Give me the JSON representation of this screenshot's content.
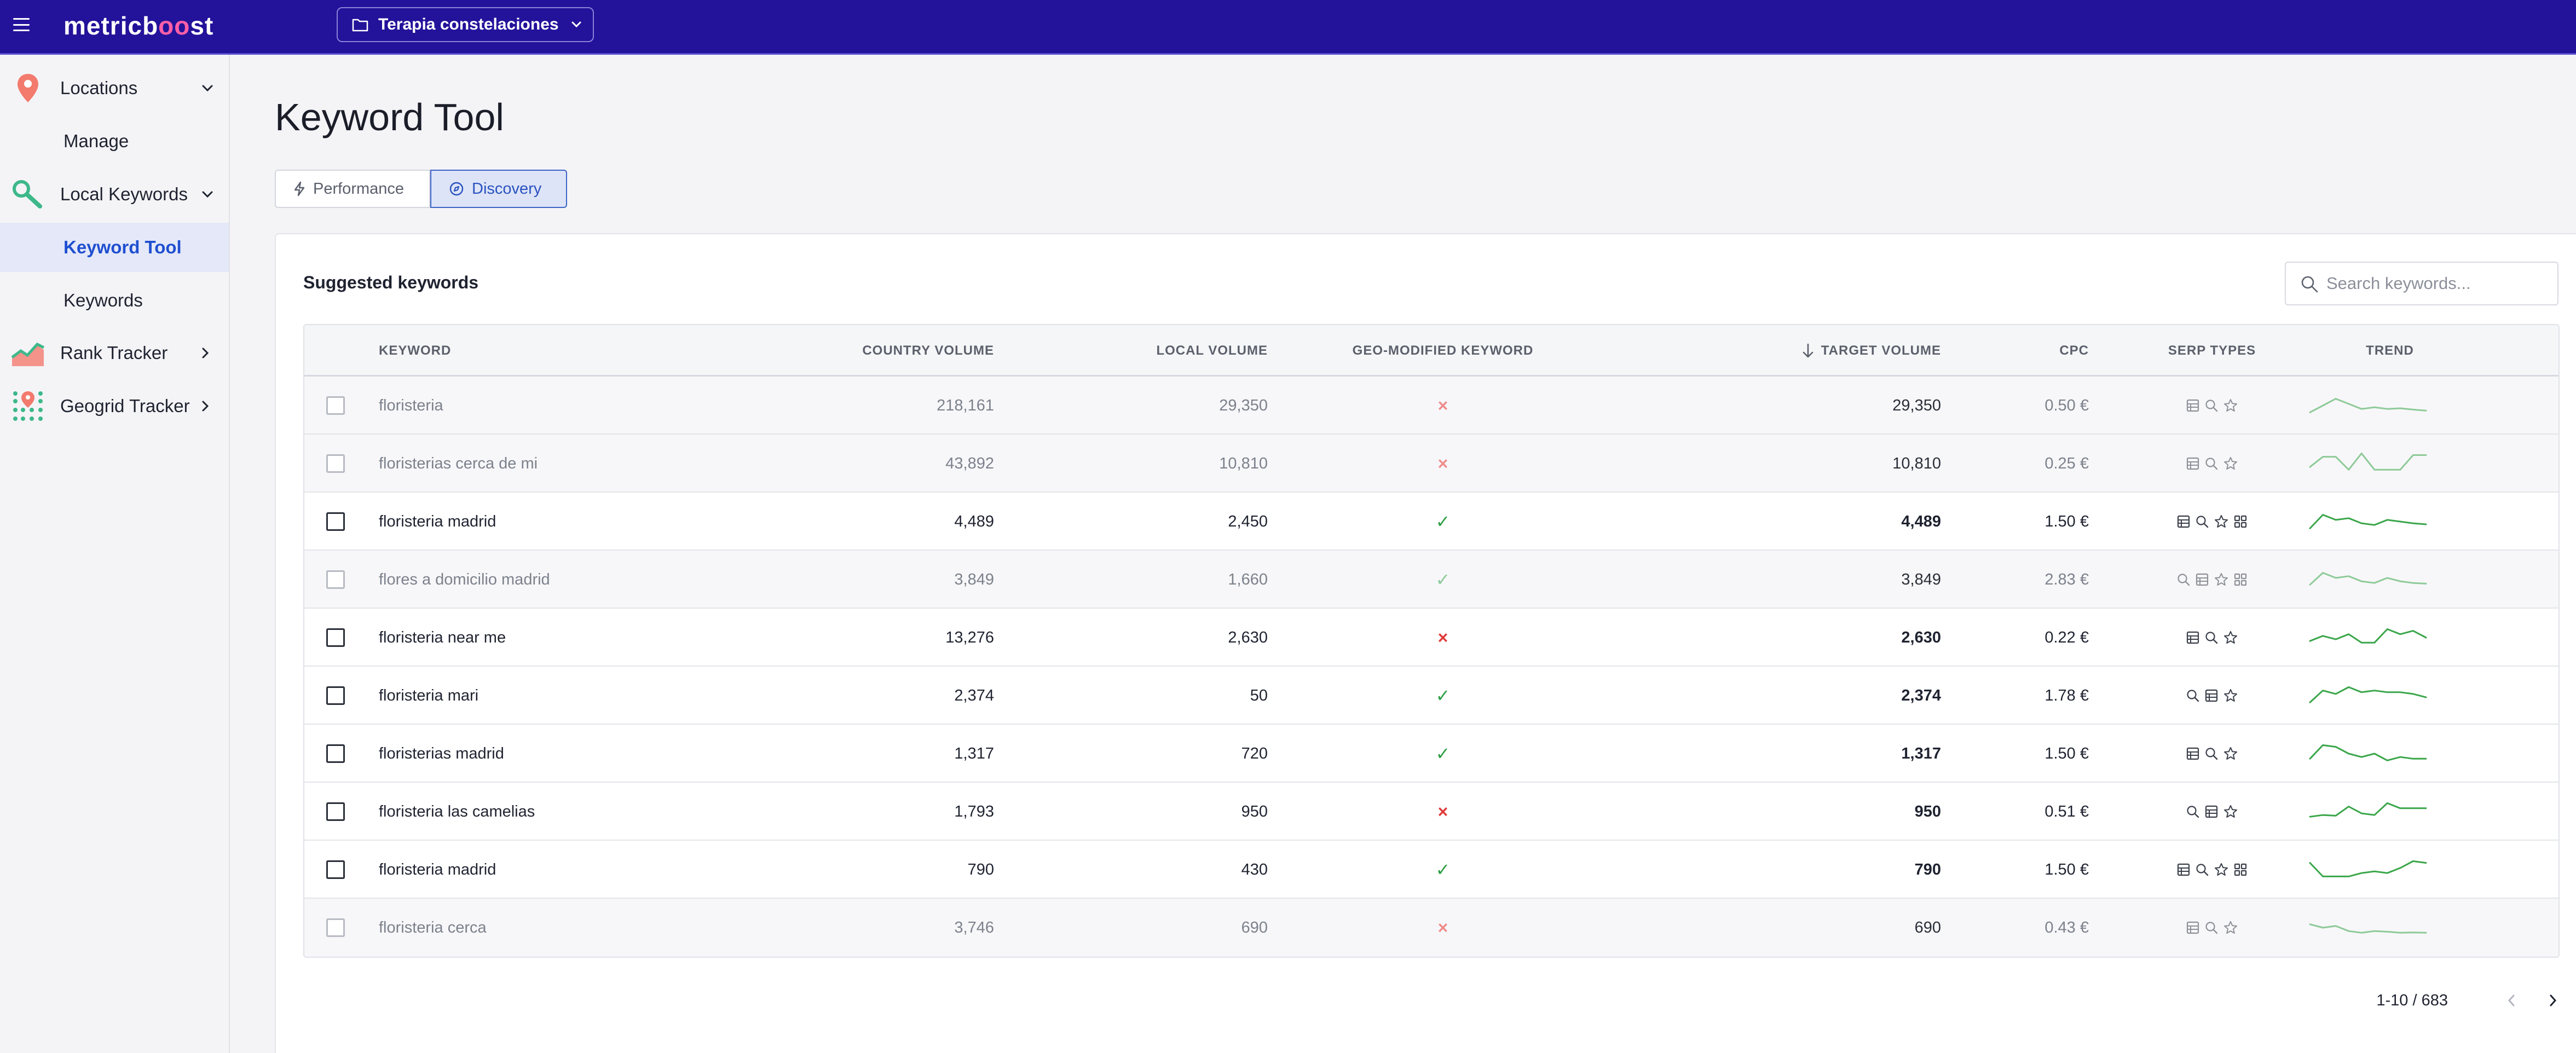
{
  "topbar": {
    "logo_prefix": "metricb",
    "logo_o1": "o",
    "logo_o2": "o",
    "logo_suffix": "st",
    "project": "Terapia constelaciones"
  },
  "sidebar": {
    "items": [
      {
        "label": "Locations",
        "icon": "map-pin-icon"
      },
      {
        "label": "Manage"
      },
      {
        "label": "Local Keywords",
        "icon": "key-search-icon"
      },
      {
        "label": "Keyword Tool",
        "active": true
      },
      {
        "label": "Keywords"
      },
      {
        "label": "Rank Tracker",
        "icon": "chart-icon"
      },
      {
        "label": "Geogrid Tracker",
        "icon": "grid-pin-icon"
      }
    ]
  },
  "page": {
    "title": "Keyword Tool",
    "tabs": [
      {
        "label": "Performance",
        "icon": "bolt-icon"
      },
      {
        "label": "Discovery",
        "icon": "compass-icon",
        "active": true
      }
    ]
  },
  "card": {
    "title": "Suggested keywords",
    "search_placeholder": "Search keywords..."
  },
  "table": {
    "headers": {
      "keyword": "KEYWORD",
      "country_volume": "COUNTRY VOLUME",
      "local_volume": "LOCAL VOLUME",
      "geo": "GEO-MODIFIED KEYWORD",
      "target_volume": "TARGET VOLUME",
      "cpc": "CPC",
      "serp": "SERP TYPES",
      "trend": "TREND"
    },
    "rows": [
      {
        "keyword": "floristeria",
        "country": "218,161",
        "local": "29,350",
        "geo": "×",
        "target": "29,350",
        "cpc": "0.50 €",
        "muted": true,
        "serp": [
          "list",
          "search",
          "star"
        ],
        "trend": [
          70,
          50,
          30,
          45,
          60,
          55,
          60,
          58,
          62,
          65
        ]
      },
      {
        "keyword": "floristerias cerca de mi",
        "country": "43,892",
        "local": "10,810",
        "geo": "×",
        "target": "10,810",
        "cpc": "0.25 €",
        "muted": true,
        "serp": [
          "list",
          "search",
          "star"
        ],
        "trend": [
          60,
          30,
          30,
          68,
          20,
          68,
          68,
          68,
          25,
          25
        ]
      },
      {
        "keyword": "floristeria madrid",
        "country": "4,489",
        "local": "2,450",
        "geo": "✓",
        "target": "4,489",
        "cpc": "1.50 €",
        "muted": false,
        "serp": [
          "list",
          "search",
          "star",
          "grid"
        ],
        "trend": [
          70,
          30,
          45,
          40,
          55,
          60,
          45,
          50,
          55,
          58
        ]
      },
      {
        "keyword": "flores a domicilio madrid",
        "country": "3,849",
        "local": "1,660",
        "geo": "✓",
        "target": "3,849",
        "cpc": "2.83 €",
        "muted": true,
        "serp": [
          "search",
          "list",
          "star",
          "grid"
        ],
        "trend": [
          65,
          30,
          45,
          40,
          55,
          60,
          45,
          55,
          60,
          62
        ]
      },
      {
        "keyword": "floristeria near me",
        "country": "13,276",
        "local": "2,630",
        "geo": "×",
        "target": "2,630",
        "cpc": "0.22 €",
        "muted": false,
        "serp": [
          "list",
          "search",
          "star"
        ],
        "trend": [
          60,
          45,
          55,
          40,
          65,
          65,
          25,
          40,
          30,
          50
        ]
      },
      {
        "keyword": "floristeria mari",
        "country": "2,374",
        "local": "50",
        "geo": "✓",
        "target": "2,374",
        "cpc": "1.78 €",
        "muted": false,
        "serp": [
          "search",
          "list",
          "star"
        ],
        "trend": [
          70,
          35,
          45,
          25,
          40,
          35,
          40,
          40,
          45,
          55
        ]
      },
      {
        "keyword": "floristerias madrid",
        "country": "1,317",
        "local": "720",
        "geo": "✓",
        "target": "1,317",
        "cpc": "1.50 €",
        "muted": false,
        "serp": [
          "list",
          "search",
          "star"
        ],
        "trend": [
          65,
          25,
          30,
          50,
          60,
          50,
          70,
          60,
          65,
          65
        ]
      },
      {
        "keyword": "floristeria las camelias",
        "country": "1,793",
        "local": "950",
        "geo": "×",
        "target": "950",
        "cpc": "0.51 €",
        "muted": false,
        "serp": [
          "search",
          "list",
          "star"
        ],
        "trend": [
          65,
          60,
          62,
          35,
          55,
          60,
          25,
          40,
          40,
          40
        ]
      },
      {
        "keyword": "floristeria madrid",
        "country": "790",
        "local": "430",
        "geo": "✓",
        "target": "790",
        "cpc": "1.50 €",
        "muted": false,
        "serp": [
          "list",
          "search",
          "star",
          "grid"
        ],
        "trend": [
          30,
          70,
          70,
          70,
          60,
          55,
          60,
          45,
          25,
          30
        ]
      },
      {
        "keyword": "floristeria cerca",
        "country": "3,746",
        "local": "690",
        "geo": "×",
        "target": "690",
        "cpc": "0.43 €",
        "muted": true,
        "serp": [
          "list",
          "search",
          "star"
        ],
        "trend": [
          40,
          50,
          45,
          60,
          65,
          60,
          62,
          65,
          64,
          65
        ]
      }
    ]
  },
  "pagination": {
    "text": "1-10 / 683"
  },
  "colors": {
    "topbar": "#23129a",
    "accent": "#2a52c0",
    "trend_line": "#3aa64a",
    "negative": "#e03b3b",
    "positive": "#2f9e44"
  }
}
